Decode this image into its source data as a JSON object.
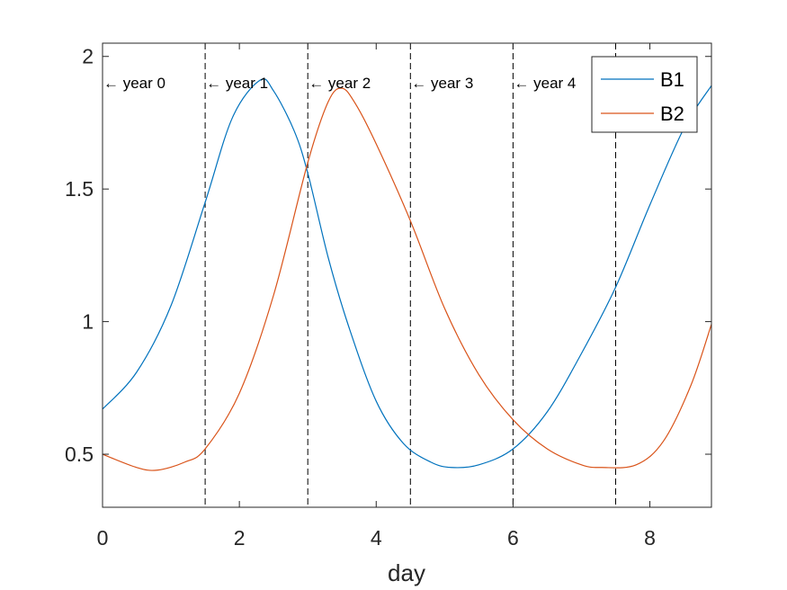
{
  "chart_data": {
    "type": "line",
    "title": "",
    "xlabel": "day",
    "ylabel": "",
    "xlim": [
      0,
      8.9
    ],
    "ylim": [
      0.3,
      2.05
    ],
    "xticks": [
      0,
      2,
      4,
      6,
      8
    ],
    "xtick_labels": [
      "0",
      "2",
      "4",
      "6",
      "8"
    ],
    "yticks": [
      0.5,
      1,
      1.5,
      2
    ],
    "ytick_labels": [
      "0.5",
      "1",
      "1.5",
      "2"
    ],
    "grid": false,
    "legend_position": "top-right",
    "series": [
      {
        "name": "B1",
        "color": "#0072BD",
        "x": [
          0,
          0.5,
          1.0,
          1.5,
          1.9,
          2.3,
          2.5,
          2.8,
          3.0,
          3.3,
          3.6,
          4.0,
          4.4,
          4.8,
          5.1,
          5.5,
          6.0,
          6.5,
          7.0,
          7.5,
          8.0,
          8.5,
          8.9
        ],
        "y": [
          0.67,
          0.81,
          1.06,
          1.45,
          1.77,
          1.91,
          1.87,
          1.72,
          1.56,
          1.24,
          0.98,
          0.7,
          0.54,
          0.47,
          0.45,
          0.46,
          0.52,
          0.66,
          0.88,
          1.13,
          1.44,
          1.73,
          1.89
        ]
      },
      {
        "name": "B2",
        "color": "#D95319",
        "x": [
          0,
          0.5,
          0.8,
          1.2,
          1.5,
          2.0,
          2.5,
          3.0,
          3.3,
          3.5,
          3.7,
          4.0,
          4.5,
          5.0,
          5.5,
          6.0,
          6.5,
          7.0,
          7.3,
          7.8,
          8.2,
          8.6,
          8.9
        ],
        "y": [
          0.5,
          0.45,
          0.44,
          0.47,
          0.52,
          0.73,
          1.1,
          1.6,
          1.83,
          1.88,
          1.82,
          1.67,
          1.38,
          1.05,
          0.8,
          0.63,
          0.52,
          0.46,
          0.45,
          0.46,
          0.55,
          0.76,
          0.99
        ]
      }
    ],
    "vlines": [
      1.5,
      3.0,
      4.5,
      6.0,
      7.5
    ],
    "annotations": [
      {
        "text": "← year 0",
        "x": 0.0,
        "y": 1.9
      },
      {
        "text": "← year 1",
        "x": 1.5,
        "y": 1.9
      },
      {
        "text": "← year 2",
        "x": 3.0,
        "y": 1.9
      },
      {
        "text": "← year 3",
        "x": 4.5,
        "y": 1.9
      },
      {
        "text": "← year 4",
        "x": 6.0,
        "y": 1.9
      }
    ]
  }
}
